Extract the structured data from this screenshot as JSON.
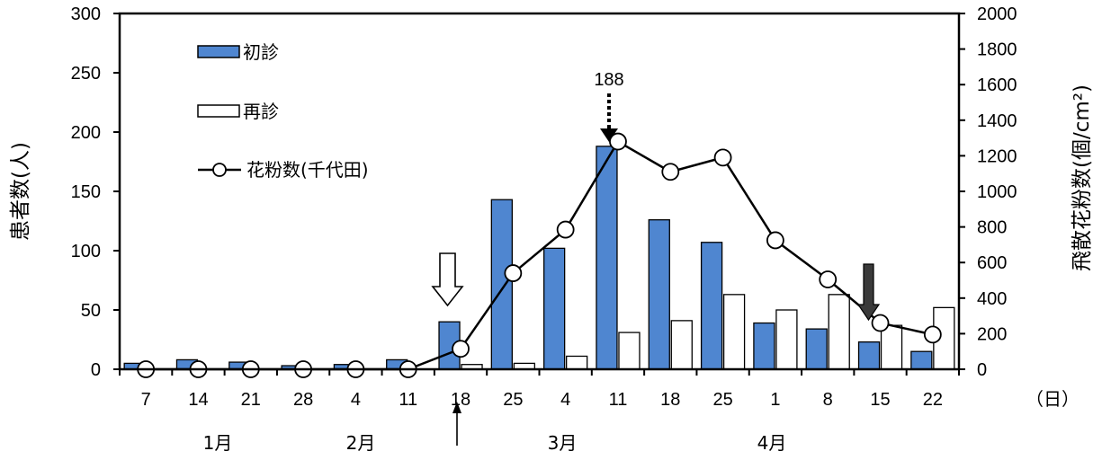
{
  "chart_data": {
    "type": "bar",
    "categories": [
      "7",
      "14",
      "21",
      "28",
      "4",
      "11",
      "18",
      "25",
      "4",
      "11",
      "18",
      "25",
      "1",
      "8",
      "15",
      "22"
    ],
    "months": [
      "1月",
      "2月",
      "3月",
      "4月"
    ],
    "x_unit": "（日）",
    "series": [
      {
        "name": "初診",
        "kind": "bar",
        "axis": "left",
        "color": "#4F86D0",
        "values": [
          5,
          8,
          6,
          3,
          4,
          8,
          40,
          143,
          102,
          188,
          126,
          107,
          39,
          34,
          23,
          15
        ]
      },
      {
        "name": "再診",
        "kind": "bar",
        "axis": "left",
        "color": "#FFFFFF",
        "values": [
          0,
          0,
          0,
          0,
          0,
          0,
          4,
          5,
          11,
          31,
          41,
          63,
          50,
          63,
          37,
          52
        ]
      },
      {
        "name": "花粉数(千代田)",
        "kind": "line",
        "axis": "right",
        "color": "#000000",
        "values": [
          0,
          0,
          0,
          0,
          0,
          0,
          115,
          540,
          785,
          1280,
          1110,
          1190,
          725,
          505,
          260,
          195
        ]
      }
    ],
    "y_left": {
      "label": "患者数(人)",
      "ylim": [
        0,
        300
      ],
      "ticks": [
        "0",
        "50",
        "100",
        "150",
        "200",
        "250",
        "300"
      ]
    },
    "y_right": {
      "label": "飛散花粉数(個/cm²)",
      "ylim": [
        0,
        2000
      ],
      "ticks": [
        "0",
        "200",
        "400",
        "600",
        "800",
        "1000",
        "1200",
        "1400",
        "1600",
        "1800",
        "2000"
      ]
    },
    "annotations": {
      "peak_label": "188"
    },
    "legend_position": "top-left",
    "grid": false
  }
}
